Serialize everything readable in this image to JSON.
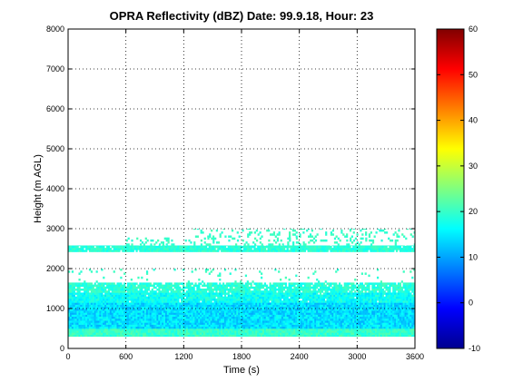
{
  "chart_data": {
    "type": "heatmap",
    "title": "OPRA Reflectivity (dBZ)  Date: 99.9.18, Hour: 23",
    "xlabel": "Time (s)",
    "ylabel": "Height (m AGL)",
    "xlim": [
      0,
      3600
    ],
    "ylim": [
      0,
      8000
    ],
    "xticks": [
      "0",
      "600",
      "1200",
      "1800",
      "2400",
      "3000",
      "3600"
    ],
    "yticks": [
      "0",
      "1000",
      "2000",
      "3000",
      "4000",
      "5000",
      "6000",
      "7000",
      "8000"
    ],
    "grid": true,
    "colorbar": {
      "colormap": "jet",
      "clim": [
        -10,
        60
      ],
      "ticks": [
        "-10",
        "0",
        "10",
        "20",
        "30",
        "40",
        "50",
        "60"
      ]
    },
    "bands": [
      {
        "height_range": [
          300,
          500
        ],
        "time_range": [
          0,
          3600
        ],
        "dbz": 20,
        "variation": 2.5,
        "coverage": 1.0
      },
      {
        "height_range": [
          500,
          1150
        ],
        "time_range": [
          0,
          3600
        ],
        "dbz": 14,
        "variation": 3.5,
        "coverage": 1.0
      },
      {
        "height_range": [
          1150,
          1400
        ],
        "time_range": [
          0,
          3600
        ],
        "dbz": 17,
        "variation": 3.0,
        "coverage": 0.98
      },
      {
        "height_range": [
          1400,
          1650
        ],
        "time_range": [
          0,
          3600
        ],
        "dbz": 19,
        "variation": 2.5,
        "coverage": 0.85
      },
      {
        "height_range": [
          1650,
          2000
        ],
        "time_range": [
          0,
          3600
        ],
        "dbz": 20,
        "variation": 1.5,
        "coverage": 0.05
      },
      {
        "height_range": [
          2420,
          2580
        ],
        "time_range": [
          0,
          3600
        ],
        "dbz": 19,
        "variation": 2.0,
        "coverage": 0.95
      },
      {
        "height_range": [
          2580,
          2780
        ],
        "time_range": [
          600,
          3600
        ],
        "dbz": 20,
        "variation": 1.5,
        "coverage": 0.18
      },
      {
        "height_range": [
          2780,
          3000
        ],
        "time_range": [
          1300,
          3600
        ],
        "dbz": 20,
        "variation": 1.5,
        "coverage": 0.2
      }
    ]
  }
}
